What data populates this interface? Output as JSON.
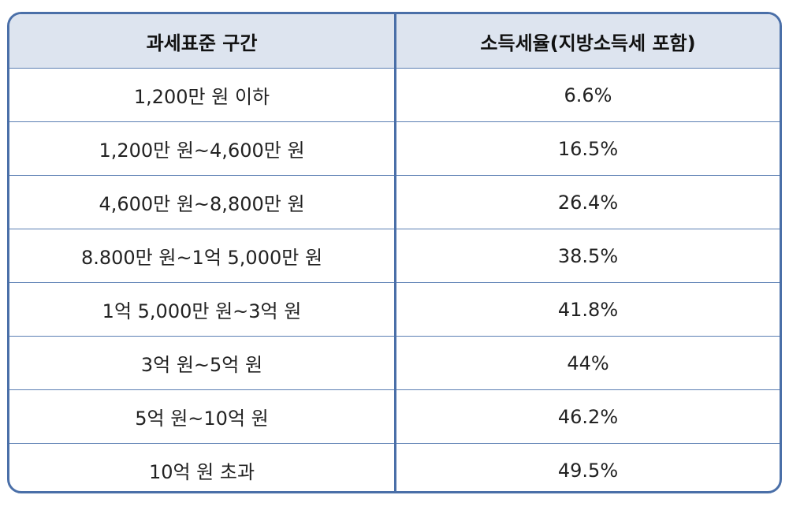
{
  "table": {
    "header": [
      "과세표준 구간",
      "소득세율(지방소득세 포함)"
    ],
    "rows": [
      [
        "1,200만 원 이하",
        "6.6%"
      ],
      [
        "1,200만 원~4,600만 원",
        "16.5%"
      ],
      [
        "4,600만 원~8,800만 원",
        "26.4%"
      ],
      [
        "8.800만 원~1억 5,000만 원",
        "38.5%"
      ],
      [
        "1억 5,000만 원~3억 원",
        "41.8%"
      ],
      [
        "3억 원~5억 원",
        "44%"
      ],
      [
        "5억 원~10억 원",
        "46.2%"
      ],
      [
        "10억 원 초과",
        "49.5%"
      ]
    ]
  }
}
